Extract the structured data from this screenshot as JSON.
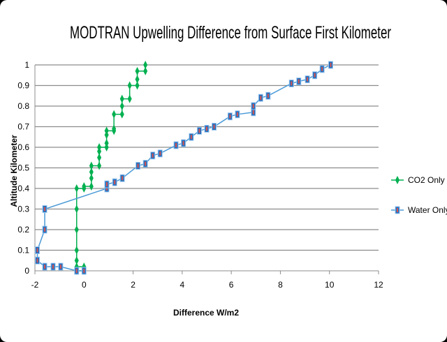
{
  "chart_data": {
    "type": "line",
    "title": "MODTRAN Upwelling Difference from Surface First Kilometer",
    "xlabel": "Difference W/m2",
    "ylabel": "Altitude Kilometer",
    "xlim": [
      -2,
      12
    ],
    "ylim": [
      0,
      1
    ],
    "xticks": [
      -2,
      0,
      2,
      4,
      6,
      8,
      10,
      12
    ],
    "yticks": [
      0,
      0.1,
      0.2,
      0.3,
      0.4,
      0.5,
      0.6,
      0.7,
      0.8,
      0.9,
      1
    ],
    "grid": "horizontal",
    "legend_position": "right",
    "series": [
      {
        "name": "CO2 Only",
        "color": "#00b050",
        "marker": "diamond",
        "x": [
          -0.3,
          0,
          0,
          -0.3,
          -0.3,
          -0.3,
          -0.3,
          -0.3,
          -0.3,
          0,
          0,
          0.3,
          0.3,
          0.3,
          0.3,
          0.62,
          0.62,
          0.62,
          0.62,
          0.92,
          0.92,
          0.92,
          0.92,
          1.22,
          1.22,
          1.22,
          1.55,
          1.55,
          1.55,
          1.86,
          1.86,
          2.17,
          2.17,
          2.17,
          2.5,
          2.5
        ],
        "y": [
          0,
          0,
          0.02,
          0.02,
          0.05,
          0.1,
          0.2,
          0.3,
          0.4,
          0.4,
          0.41,
          0.41,
          0.45,
          0.48,
          0.51,
          0.51,
          0.55,
          0.58,
          0.6,
          0.6,
          0.62,
          0.66,
          0.68,
          0.68,
          0.69,
          0.76,
          0.76,
          0.8,
          0.835,
          0.835,
          0.9,
          0.9,
          0.93,
          0.97,
          0.97,
          1.0
        ]
      },
      {
        "name": "Water Only",
        "color": "#4a9ad8",
        "marker": "square",
        "x": [
          0,
          -0.3,
          -0.95,
          -1.26,
          -1.6,
          -1.9,
          -1.9,
          -1.6,
          -1.6,
          0.93,
          0.93,
          1.25,
          1.56,
          2.2,
          2.5,
          2.8,
          3.1,
          3.75,
          4.05,
          4.37,
          4.7,
          5.0,
          5.3,
          5.95,
          6.25,
          6.9,
          6.9,
          7.2,
          7.5,
          8.45,
          8.75,
          9.1,
          9.4,
          9.7,
          10.05
        ],
        "y": [
          0,
          0,
          0.02,
          0.02,
          0.02,
          0.05,
          0.1,
          0.2,
          0.3,
          0.4,
          0.42,
          0.43,
          0.45,
          0.51,
          0.52,
          0.56,
          0.57,
          0.61,
          0.62,
          0.65,
          0.68,
          0.69,
          0.7,
          0.75,
          0.76,
          0.77,
          0.8,
          0.84,
          0.85,
          0.91,
          0.92,
          0.93,
          0.95,
          0.98,
          1.0
        ]
      }
    ]
  }
}
